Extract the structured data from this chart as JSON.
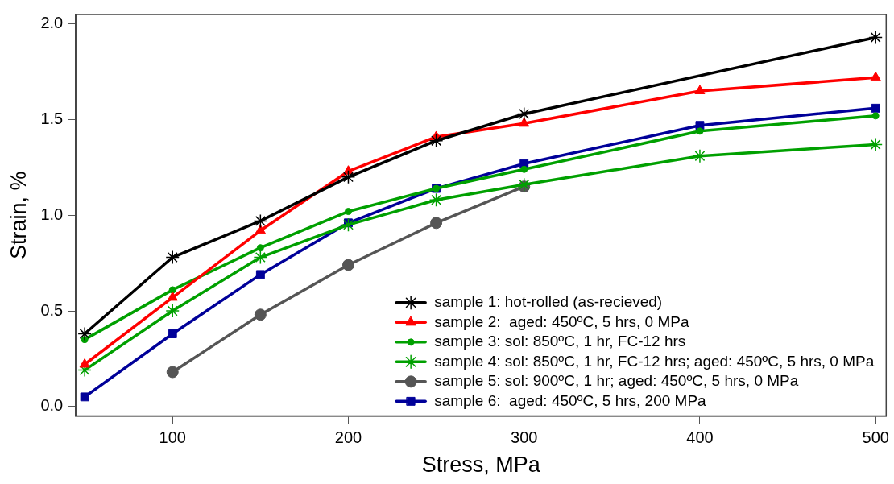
{
  "chart_data": {
    "type": "line",
    "xlabel": "Stress, MPa",
    "ylabel": "Strain, %",
    "xlim": [
      45,
      506
    ],
    "xticks": [
      100,
      200,
      300,
      400,
      500
    ],
    "ylim": [
      -0.05,
      2.05
    ],
    "yticks": [
      {
        "value": 0,
        "label": "0.0"
      },
      0.5,
      {
        "value": 1,
        "label": "1.0"
      },
      1.5,
      {
        "value": 2,
        "label": "2.0"
      }
    ],
    "grid": false,
    "legend": "bottom right",
    "line_style": "solid",
    "series": [
      {
        "name": "sample 1: hot-rolled (as-recieved)",
        "color": "#000000",
        "marker": "cross",
        "x": [
          50,
          100,
          150,
          200,
          250,
          300,
          500
        ],
        "values": [
          0.38,
          0.78,
          0.97,
          1.2,
          1.39,
          1.53,
          1.93
        ]
      },
      {
        "name": "sample 2:  aged: 450ºC, 5 hrs, 0 MPa",
        "color": "#ff0000",
        "marker": "triangle",
        "x": [
          50,
          100,
          150,
          200,
          250,
          300,
          400,
          500
        ],
        "values": [
          0.22,
          0.57,
          0.92,
          1.23,
          1.41,
          1.48,
          1.65,
          1.72
        ]
      },
      {
        "name": "sample 3: sol: 850ºC, 1 hr, FC-12 hrs",
        "color": "#00a000",
        "marker": "circle",
        "x": [
          50,
          100,
          150,
          200,
          250,
          300,
          400,
          500
        ],
        "values": [
          0.35,
          0.61,
          0.83,
          1.02,
          1.14,
          1.24,
          1.44,
          1.52
        ]
      },
      {
        "name": "sample 4: sol: 850ºC, 1 hr, FC-12 hrs; aged: 450ºC, 5 hrs, 0 MPa",
        "color": "#00a000",
        "marker": "cross",
        "x": [
          50,
          100,
          150,
          200,
          250,
          300,
          400,
          500
        ],
        "values": [
          0.19,
          0.5,
          0.78,
          0.95,
          1.08,
          1.16,
          1.31,
          1.37
        ]
      },
      {
        "name": "sample 5: sol: 900ºC, 1 hr; aged: 450ºC, 5 hrs, 0 MPa",
        "color": "#555555",
        "marker": "circle",
        "x": [
          100,
          150,
          200,
          250,
          300
        ],
        "values": [
          0.18,
          0.48,
          0.74,
          0.96,
          1.15
        ]
      },
      {
        "name": "sample 6:  aged: 450ºC, 5 hrs, 200 MPa",
        "color": "#000099",
        "marker": "square",
        "x": [
          50,
          100,
          150,
          200,
          250,
          300,
          400,
          500
        ],
        "values": [
          0.05,
          0.38,
          0.69,
          0.96,
          1.14,
          1.27,
          1.47,
          1.56
        ]
      }
    ]
  }
}
